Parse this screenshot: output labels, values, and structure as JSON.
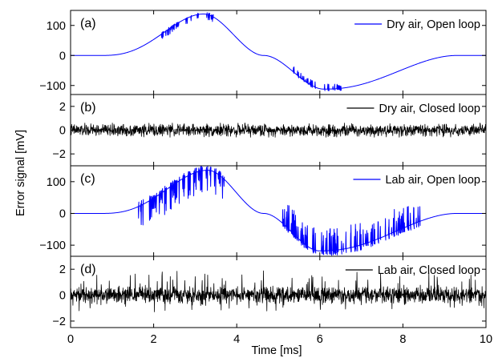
{
  "chart_data": {
    "type": "line",
    "xlabel": "Time [ms]",
    "ylabel": "Error signal [mV]",
    "xlim": [
      0,
      10
    ],
    "x_ticks": [
      "0",
      "2",
      "4",
      "6",
      "8",
      "10"
    ],
    "grid": false,
    "legend_position": "top-right",
    "panels": [
      {
        "tag": "(a)",
        "series_name": "Dry air, Open loop",
        "color": "#0000ff",
        "kind": "open",
        "ylim": [
          -130,
          150
        ],
        "y_ticks": [
          -100,
          0,
          100
        ],
        "y_tick_labels": [
          "−100",
          "0",
          "100"
        ],
        "base_shape": {
          "start_ms": 0.7,
          "end_ms": 9.3,
          "peak_ms": 3.2,
          "peak_mV": 138,
          "trough_ms": 6.1,
          "trough_mV": -112
        },
        "glitch_windows_ms": [
          [
            2.1,
            3.5
          ],
          [
            5.3,
            6.5
          ]
        ],
        "glitch_rate": 0.16,
        "glitch_depth_mV": [
          6,
          18
        ],
        "glitch_spike_mV": [
          6,
          20
        ]
      },
      {
        "tag": "(b)",
        "series_name": "Dry air, Closed loop",
        "color": "#000000",
        "kind": "closed",
        "ylim": [
          -3,
          3
        ],
        "y_ticks": [
          -2,
          0,
          2
        ],
        "y_tick_labels": [
          "−2",
          "0",
          "2"
        ],
        "noise_rms_mV": 0.25,
        "noise_peak_mV": 0.6,
        "spike_rate": 0.0
      },
      {
        "tag": "(c)",
        "series_name": "Lab air, Open loop",
        "color": "#0000ff",
        "kind": "open",
        "ylim": [
          -135,
          150
        ],
        "y_ticks": [
          -100,
          0,
          100
        ],
        "y_tick_labels": [
          "−100",
          "0",
          "100"
        ],
        "base_shape": {
          "start_ms": 0.7,
          "end_ms": 9.3,
          "peak_ms": 3.3,
          "peak_mV": 136,
          "trough_ms": 6.0,
          "trough_mV": -118
        },
        "glitch_windows_ms": [
          [
            1.6,
            3.7
          ],
          [
            4.9,
            8.4
          ]
        ],
        "glitch_rate": 0.22,
        "glitch_depth_mV": [
          15,
          75
        ],
        "glitch_spike_mV": [
          15,
          45
        ]
      },
      {
        "tag": "(d)",
        "series_name": "Lab air, Closed loop",
        "color": "#000000",
        "kind": "closed",
        "ylim": [
          -2.5,
          3
        ],
        "y_ticks": [
          -2,
          0,
          2
        ],
        "y_tick_labels": [
          "−2",
          "0",
          "2"
        ],
        "noise_rms_mV": 0.3,
        "noise_peak_mV": 0.8,
        "spike_rate": 0.06,
        "spike_mV": [
          0.8,
          1.9
        ]
      }
    ]
  }
}
